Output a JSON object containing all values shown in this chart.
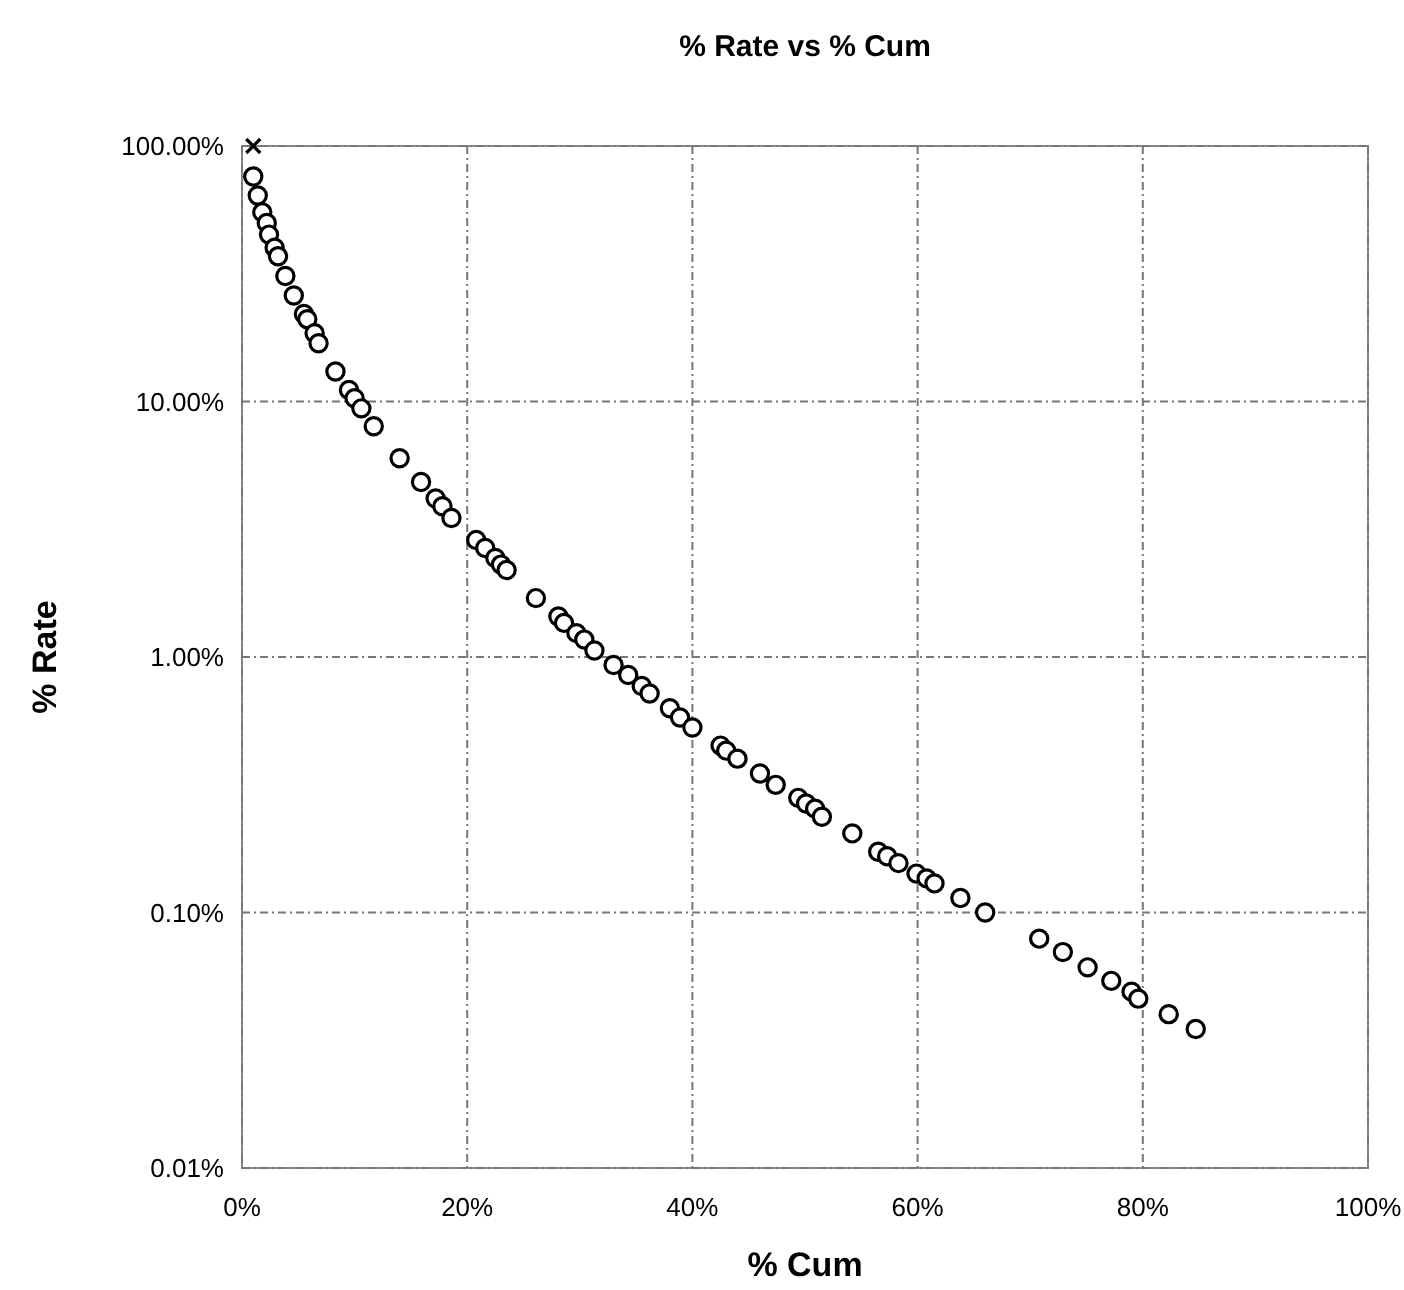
{
  "chart_data": {
    "type": "scatter",
    "title": "% Rate vs % Cum",
    "xlabel": "% Cum",
    "ylabel": "% Rate",
    "log": "y",
    "grid": true,
    "xlim": [
      0,
      100
    ],
    "xticks": [
      {
        "value": 0,
        "label": "0%"
      },
      {
        "value": 20,
        "label": "20%"
      },
      {
        "value": 40,
        "label": "40%"
      },
      {
        "value": 60,
        "label": "60%"
      },
      {
        "value": 80,
        "label": "80%"
      },
      {
        "value": 100,
        "label": "100%"
      }
    ],
    "ylim": [
      0.01,
      100
    ],
    "yticks": [
      {
        "value": 0.01,
        "label": "0.01%"
      },
      {
        "value": 0.1,
        "label": "0.10%"
      },
      {
        "value": 1,
        "label": "1.00%"
      },
      {
        "value": 10,
        "label": "10.00%"
      },
      {
        "value": 100,
        "label": "100.00%"
      }
    ],
    "series": [
      {
        "color": "#000000",
        "marker": "cross",
        "x": [
          1.0
        ],
        "values": [
          100
        ]
      },
      {
        "color": "#000000",
        "marker": "circle",
        "x": [
          1.0,
          1.4,
          1.8,
          2.2,
          2.4,
          2.9,
          3.2,
          3.85,
          4.6,
          5.5,
          5.8,
          6.45,
          6.8,
          8.3,
          9.5,
          10.0,
          10.6,
          11.7,
          14.0,
          15.9,
          17.2,
          17.8,
          18.6,
          20.8,
          21.6,
          22.5,
          23.0,
          23.5,
          26.1,
          28.1,
          28.6,
          29.7,
          30.4,
          31.3,
          33.0,
          34.3,
          35.5,
          36.2,
          38.0,
          38.9,
          40.0,
          42.5,
          43.0,
          44.0,
          46.0,
          47.4,
          49.4,
          50.1,
          50.9,
          51.5,
          54.2,
          56.5,
          57.3,
          58.3,
          59.9,
          60.8,
          61.5,
          63.8,
          66.0,
          70.8,
          72.9,
          75.1,
          77.2,
          79.0,
          79.6,
          82.3,
          84.7
        ],
        "values": [
          76,
          64,
          55,
          50,
          45,
          40,
          37,
          31,
          26,
          22,
          21,
          18.5,
          16.9,
          13.1,
          11.1,
          10.3,
          9.4,
          8.0,
          6.0,
          4.84,
          4.17,
          3.89,
          3.5,
          2.87,
          2.67,
          2.44,
          2.3,
          2.19,
          1.7,
          1.44,
          1.36,
          1.24,
          1.17,
          1.06,
          0.93,
          0.85,
          0.77,
          0.72,
          0.63,
          0.58,
          0.53,
          0.45,
          0.43,
          0.4,
          0.35,
          0.316,
          0.281,
          0.267,
          0.255,
          0.237,
          0.204,
          0.173,
          0.166,
          0.156,
          0.142,
          0.136,
          0.13,
          0.114,
          0.1,
          0.079,
          0.07,
          0.061,
          0.054,
          0.049,
          0.046,
          0.04,
          0.035
        ]
      }
    ]
  }
}
